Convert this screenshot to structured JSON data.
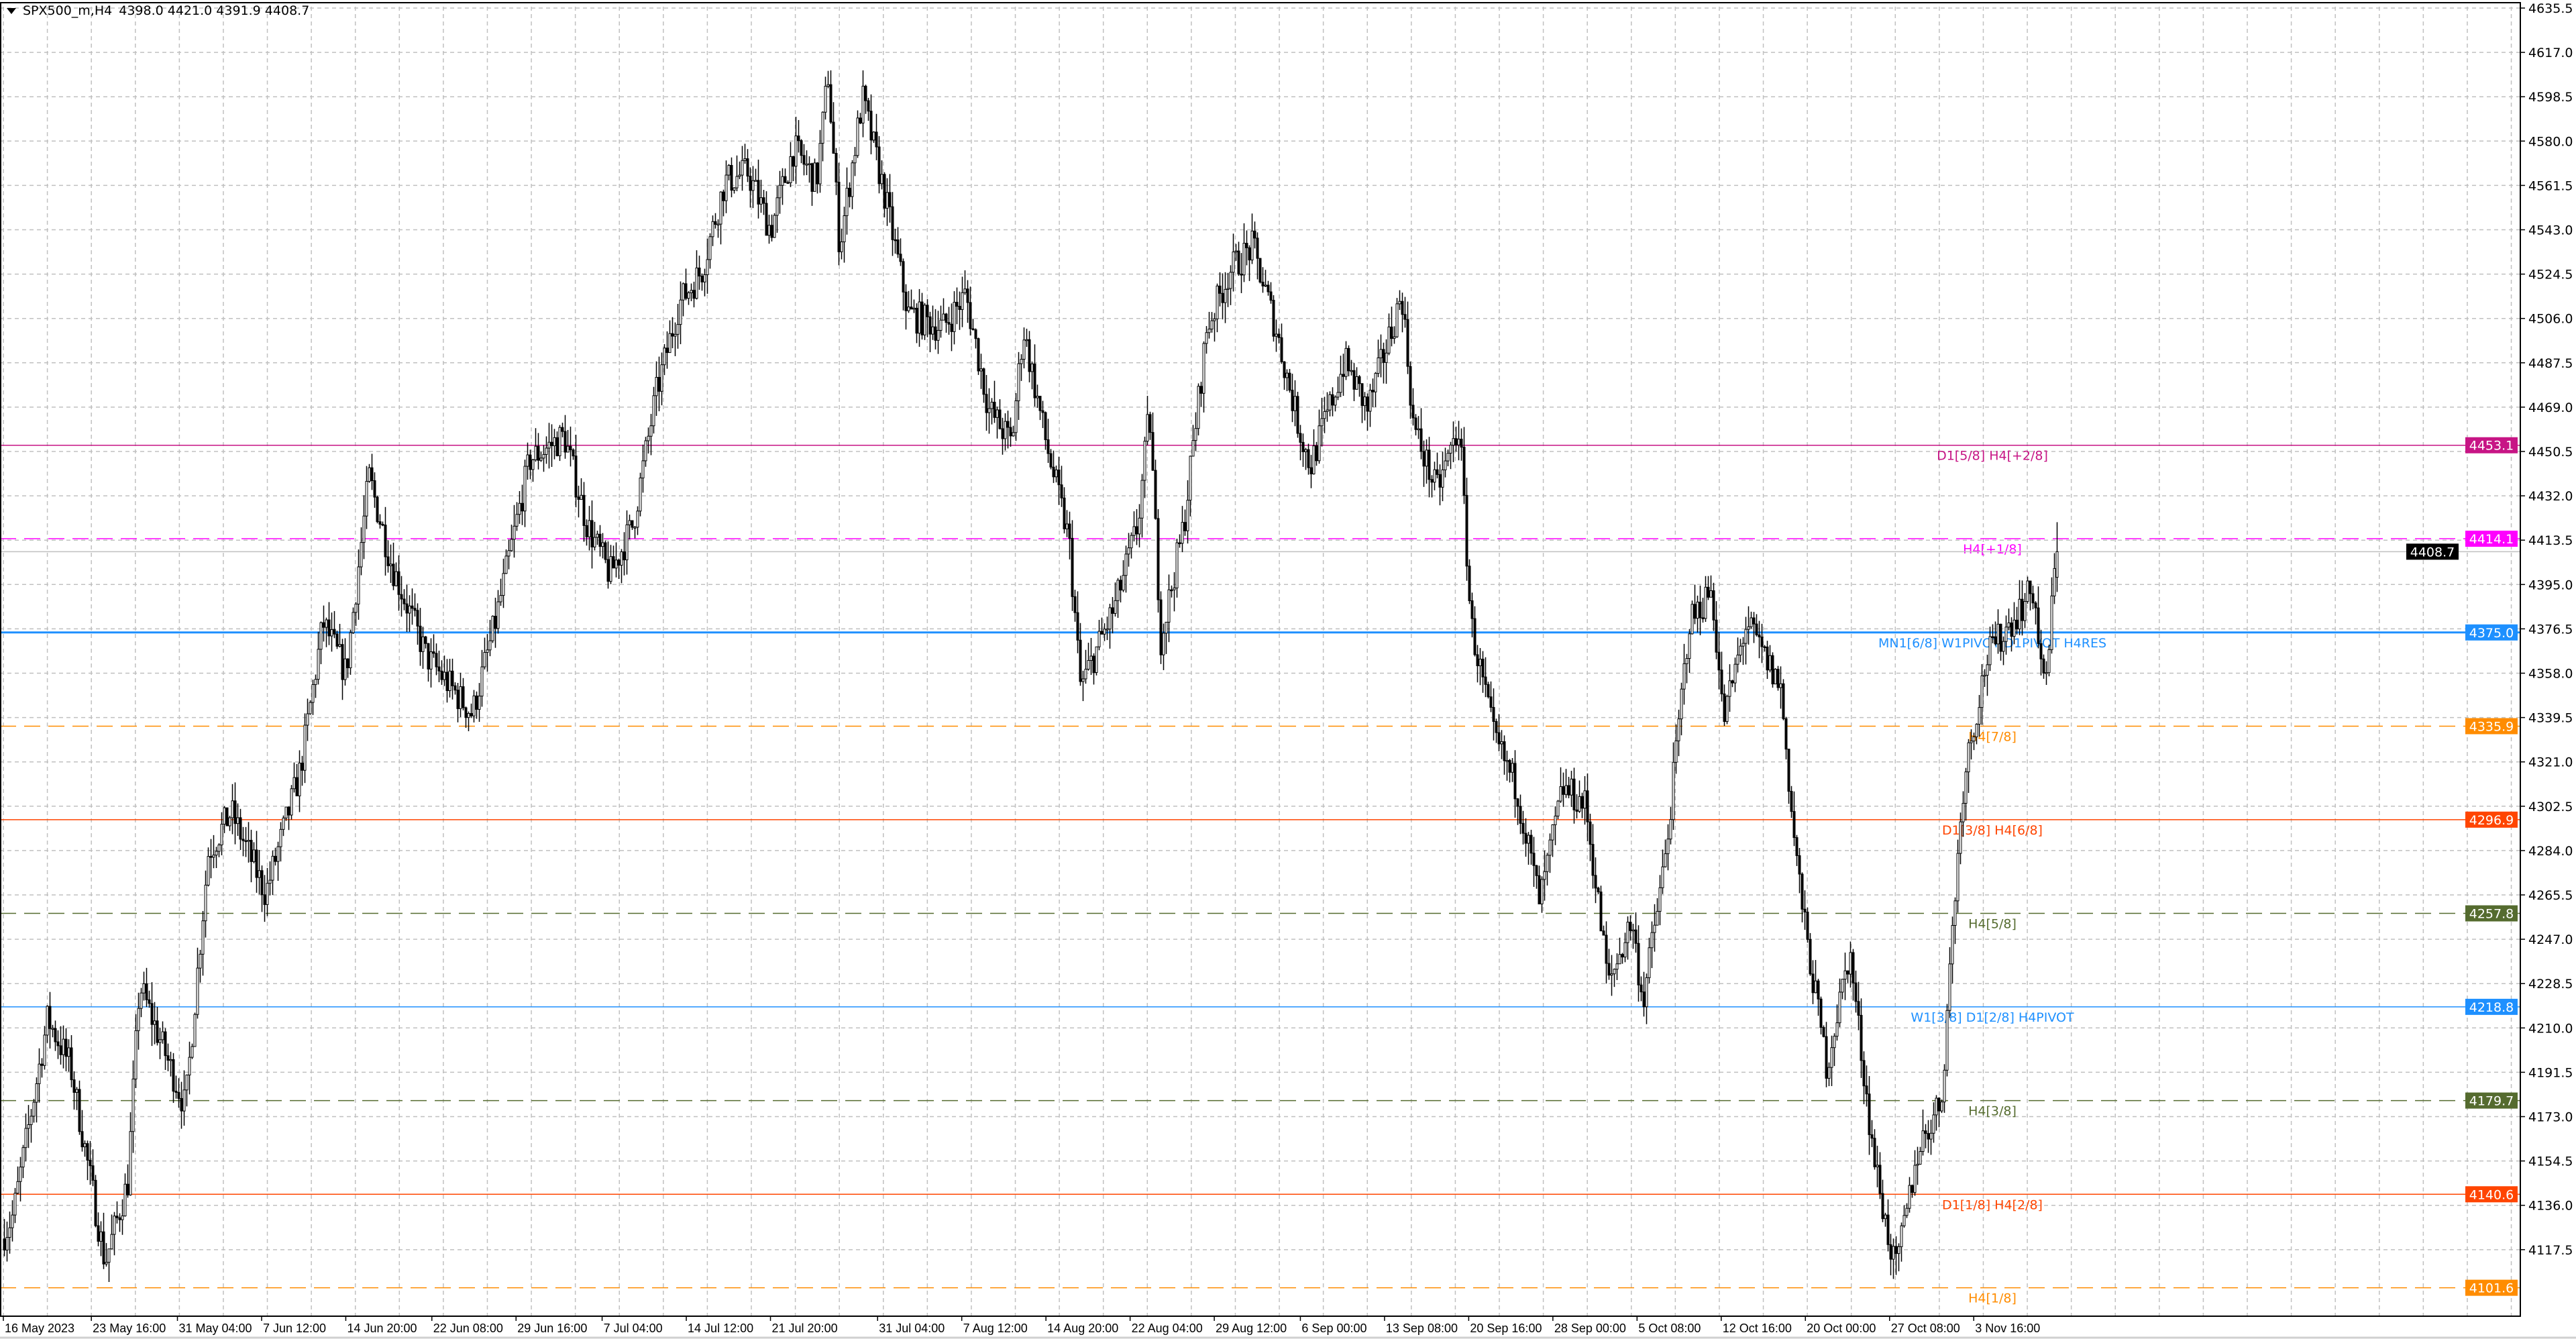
{
  "header": {
    "symbol_timeframe": "SPX500_m,H4",
    "ohlc": "4398.0 4421.0 4391.9 4408.7",
    "menu_icon": "triangle-down-icon"
  },
  "colors": {
    "background": "#ffffff",
    "grid": "#c0c0c0",
    "bull_candle": "#ffffff",
    "bear_candle": "#000000",
    "candle_outline": "#000000"
  },
  "chart_data": {
    "type": "candlestick",
    "symbol": "SPX500_m",
    "timeframe": "H4",
    "last_bar": {
      "open": 4398.0,
      "high": 4421.0,
      "low": 4391.9,
      "close": 4408.7
    },
    "current_price": 4408.7,
    "ylim": [
      4101.6,
      4635.5
    ],
    "grid": true,
    "y_ticks": [
      "4635.5",
      "4617.0",
      "4598.5",
      "4580.0",
      "4561.5",
      "4543.0",
      "4524.5",
      "4506.0",
      "4487.5",
      "4469.0",
      "4450.5",
      "4432.0",
      "4413.5",
      "4395.0",
      "4376.5",
      "4358.0",
      "4339.5",
      "4321.0",
      "4302.5",
      "4284.0",
      "4265.5",
      "4247.0",
      "4228.5",
      "4210.0",
      "4191.5",
      "4173.0",
      "4154.5",
      "4136.0",
      "4117.5"
    ],
    "x_ticks": [
      {
        "label": "16 May 2023",
        "date": "2023-05-16"
      },
      {
        "label": "23 May 16:00",
        "date": "2023-05-23T16:00"
      },
      {
        "label": "31 May 04:00",
        "date": "2023-05-31T04:00"
      },
      {
        "label": "7 Jun 12:00",
        "date": "2023-06-07T12:00"
      },
      {
        "label": "14 Jun 20:00",
        "date": "2023-06-14T20:00"
      },
      {
        "label": "22 Jun 08:00",
        "date": "2023-06-22T08:00"
      },
      {
        "label": "29 Jun 16:00",
        "date": "2023-06-29T16:00"
      },
      {
        "label": "7 Jul 04:00",
        "date": "2023-07-07T04:00"
      },
      {
        "label": "14 Jul 12:00",
        "date": "2023-07-14T12:00"
      },
      {
        "label": "21 Jul 20:00",
        "date": "2023-07-21T20:00"
      },
      {
        "label": "31 Jul 04:00",
        "date": "2023-07-31T04:00"
      },
      {
        "label": "7 Aug 12:00",
        "date": "2023-08-07T12:00"
      },
      {
        "label": "14 Aug 20:00",
        "date": "2023-08-14T20:00"
      },
      {
        "label": "22 Aug 04:00",
        "date": "2023-08-22T04:00"
      },
      {
        "label": "29 Aug 12:00",
        "date": "2023-08-29T12:00"
      },
      {
        "label": "6 Sep 00:00",
        "date": "2023-09-06T00:00"
      },
      {
        "label": "13 Sep 08:00",
        "date": "2023-09-13T08:00"
      },
      {
        "label": "20 Sep 16:00",
        "date": "2023-09-20T16:00"
      },
      {
        "label": "28 Sep 00:00",
        "date": "2023-09-28T00:00"
      },
      {
        "label": "5 Oct 08:00",
        "date": "2023-10-05T08:00"
      },
      {
        "label": "12 Oct 16:00",
        "date": "2023-10-12T16:00"
      },
      {
        "label": "20 Oct 00:00",
        "date": "2023-10-20T00:00"
      },
      {
        "label": "27 Oct 08:00",
        "date": "2023-10-27T08:00"
      },
      {
        "label": "3 Nov 16:00",
        "date": "2023-11-03T16:00"
      }
    ],
    "price_path": [
      [
        "2023-05-16",
        4122
      ],
      [
        "2023-05-17",
        4132
      ],
      [
        "2023-05-20",
        4214
      ],
      [
        "2023-05-22",
        4194
      ],
      [
        "2023-05-25",
        4112
      ],
      [
        "2023-05-27",
        4146
      ],
      [
        "2023-05-28",
        4228
      ],
      [
        "2023-06-01",
        4177
      ],
      [
        "2023-06-03",
        4283
      ],
      [
        "2023-06-05",
        4300
      ],
      [
        "2023-06-08",
        4266
      ],
      [
        "2023-06-11",
        4317
      ],
      [
        "2023-06-13",
        4379
      ],
      [
        "2023-06-15",
        4358
      ],
      [
        "2023-06-17",
        4440
      ],
      [
        "2023-06-19",
        4403
      ],
      [
        "2023-06-22",
        4365
      ],
      [
        "2023-06-26",
        4341
      ],
      [
        "2023-06-28",
        4379
      ],
      [
        "2023-07-01",
        4447
      ],
      [
        "2023-07-04",
        4457
      ],
      [
        "2023-07-06",
        4420
      ],
      [
        "2023-07-08",
        4399
      ],
      [
        "2023-07-10",
        4420
      ],
      [
        "2023-07-12",
        4474
      ],
      [
        "2023-07-14",
        4512
      ],
      [
        "2023-07-16",
        4526
      ],
      [
        "2023-07-18",
        4563
      ],
      [
        "2023-07-20",
        4567
      ],
      [
        "2023-07-22",
        4543
      ],
      [
        "2023-07-24",
        4577
      ],
      [
        "2023-07-26",
        4563
      ],
      [
        "2023-07-27",
        4608
      ],
      [
        "2023-07-28",
        4536
      ],
      [
        "2023-07-30",
        4598
      ],
      [
        "2023-08-01",
        4556
      ],
      [
        "2023-08-03",
        4508
      ],
      [
        "2023-08-06",
        4502
      ],
      [
        "2023-08-08",
        4516
      ],
      [
        "2023-08-10",
        4468
      ],
      [
        "2023-08-12",
        4454
      ],
      [
        "2023-08-13",
        4502
      ],
      [
        "2023-08-15",
        4454
      ],
      [
        "2023-08-17",
        4413
      ],
      [
        "2023-08-18",
        4352
      ],
      [
        "2023-08-21",
        4386
      ],
      [
        "2023-08-23",
        4420
      ],
      [
        "2023-08-24",
        4468
      ],
      [
        "2023-08-25",
        4372
      ],
      [
        "2023-08-27",
        4420
      ],
      [
        "2023-08-29",
        4502
      ],
      [
        "2023-08-31",
        4526
      ],
      [
        "2023-09-02",
        4536
      ],
      [
        "2023-09-04",
        4502
      ],
      [
        "2023-09-06",
        4461
      ],
      [
        "2023-09-07",
        4444
      ],
      [
        "2023-09-10",
        4488
      ],
      [
        "2023-09-12",
        4468
      ],
      [
        "2023-09-15",
        4516
      ],
      [
        "2023-09-16",
        4461
      ],
      [
        "2023-09-18",
        4434
      ],
      [
        "2023-09-20",
        4461
      ],
      [
        "2023-09-21",
        4379
      ],
      [
        "2023-09-23",
        4331
      ],
      [
        "2023-09-25",
        4310
      ],
      [
        "2023-09-27",
        4262
      ],
      [
        "2023-09-29",
        4310
      ],
      [
        "2023-10-01",
        4303
      ],
      [
        "2023-10-03",
        4228
      ],
      [
        "2023-10-05",
        4255
      ],
      [
        "2023-10-06",
        4221
      ],
      [
        "2023-10-08",
        4283
      ],
      [
        "2023-10-10",
        4379
      ],
      [
        "2023-10-12",
        4393
      ],
      [
        "2023-10-13",
        4338
      ],
      [
        "2023-10-15",
        4379
      ],
      [
        "2023-10-18",
        4352
      ],
      [
        "2023-10-19",
        4297
      ],
      [
        "2023-10-20",
        4255
      ],
      [
        "2023-10-22",
        4194
      ],
      [
        "2023-10-24",
        4242
      ],
      [
        "2023-10-26",
        4160
      ],
      [
        "2023-10-27",
        4132
      ],
      [
        "2023-10-28",
        4108
      ],
      [
        "2023-10-30",
        4160
      ],
      [
        "2023-11-01",
        4180
      ],
      [
        "2023-11-02",
        4255
      ],
      [
        "2023-11-03",
        4317
      ],
      [
        "2023-11-05",
        4365
      ],
      [
        "2023-11-07",
        4379
      ],
      [
        "2023-11-09",
        4393
      ],
      [
        "2023-11-10",
        4348
      ],
      [
        "2023-11-11",
        4408.7
      ]
    ],
    "levels": [
      {
        "price": 4453.1,
        "price_label": "4453.1",
        "text": "D1[5/8] H4[+2/8]",
        "color": "#c71585",
        "style": "solid"
      },
      {
        "price": 4414.1,
        "price_label": "4414.1",
        "text": "H4[+1/8]",
        "color": "#ff00ff",
        "style": "dashed"
      },
      {
        "price": 4375.0,
        "price_label": "4375.0",
        "text": "MN1[6/8] W1PIVOT D1PIVOT H4RES",
        "color": "#1e90ff",
        "style": "solid-thick"
      },
      {
        "price": 4335.9,
        "price_label": "4335.9",
        "text": "H4[7/8]",
        "color": "#ff8c00",
        "style": "dashed"
      },
      {
        "price": 4296.9,
        "price_label": "4296.9",
        "text": "D1[3/8] H4[6/8]",
        "color": "#ff4500",
        "style": "solid"
      },
      {
        "price": 4257.8,
        "price_label": "4257.8",
        "text": "H4[5/8]",
        "color": "#556b2f",
        "style": "dashed"
      },
      {
        "price": 4218.8,
        "price_label": "4218.8",
        "text": "W1[3/8] D1[2/8] H4PIVOT",
        "color": "#1e90ff",
        "style": "solid"
      },
      {
        "price": 4179.7,
        "price_label": "4179.7",
        "text": "H4[3/8]",
        "color": "#556b2f",
        "style": "dashed"
      },
      {
        "price": 4140.6,
        "price_label": "4140.6",
        "text": "D1[1/8] H4[2/8]",
        "color": "#ff4500",
        "style": "solid"
      },
      {
        "price": 4101.6,
        "price_label": "4101.6",
        "text": "H4[1/8]",
        "color": "#ff8c00",
        "style": "dashed"
      }
    ],
    "current_price_label": "4408.7",
    "current_price_color": "#000000"
  }
}
